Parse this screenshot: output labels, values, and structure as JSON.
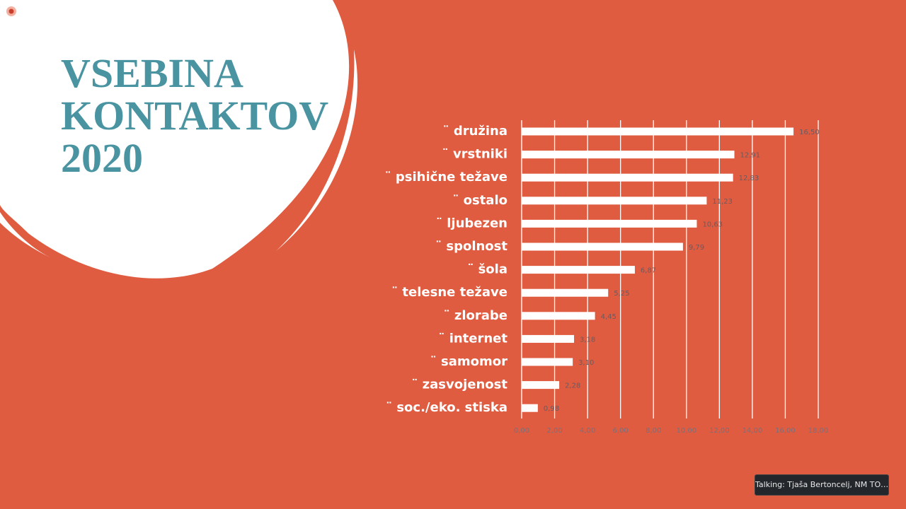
{
  "chart_data": {
    "type": "bar",
    "orientation": "horizontal",
    "title": "VSEBINA KONTAKTOV 2020",
    "categories": [
      "¨ družina",
      "¨ vrstniki",
      "¨ psihične težave",
      "¨ ostalo",
      "¨ ljubezen",
      "¨ spolnost",
      "¨ šola",
      "¨ telesne težave",
      "¨ zlorabe",
      "¨ internet",
      "¨ samomor",
      "¨ zasvojenost",
      "¨ soc./eko. stiska"
    ],
    "values": [
      16.5,
      12.91,
      12.83,
      11.23,
      10.63,
      9.79,
      6.87,
      5.25,
      4.45,
      3.18,
      3.1,
      2.28,
      0.98
    ],
    "value_labels": [
      "16,50",
      "12,91",
      "12,83",
      "11,23",
      "10,63",
      "9,79",
      "6,87",
      "5,25",
      "4,45",
      "3,18",
      "3,10",
      "2,28",
      "0,98"
    ],
    "color": "#ffffff",
    "xlim": [
      0,
      18
    ],
    "xticks": [
      {
        "value": 0,
        "label": "0,00"
      },
      {
        "value": 2,
        "label": "2,00"
      },
      {
        "value": 4,
        "label": "4,00"
      },
      {
        "value": 6,
        "label": "6,00"
      },
      {
        "value": 8,
        "label": "8,00"
      },
      {
        "value": 10,
        "label": "10,00"
      },
      {
        "value": 12,
        "label": "12,00"
      },
      {
        "value": 14,
        "label": "14,00"
      },
      {
        "value": 16,
        "label": "16,00"
      },
      {
        "value": 18,
        "label": "18,00"
      }
    ],
    "grid": true
  },
  "status": {
    "talking": "Talking: Tjaša Bertoncelj, NM TO…"
  }
}
